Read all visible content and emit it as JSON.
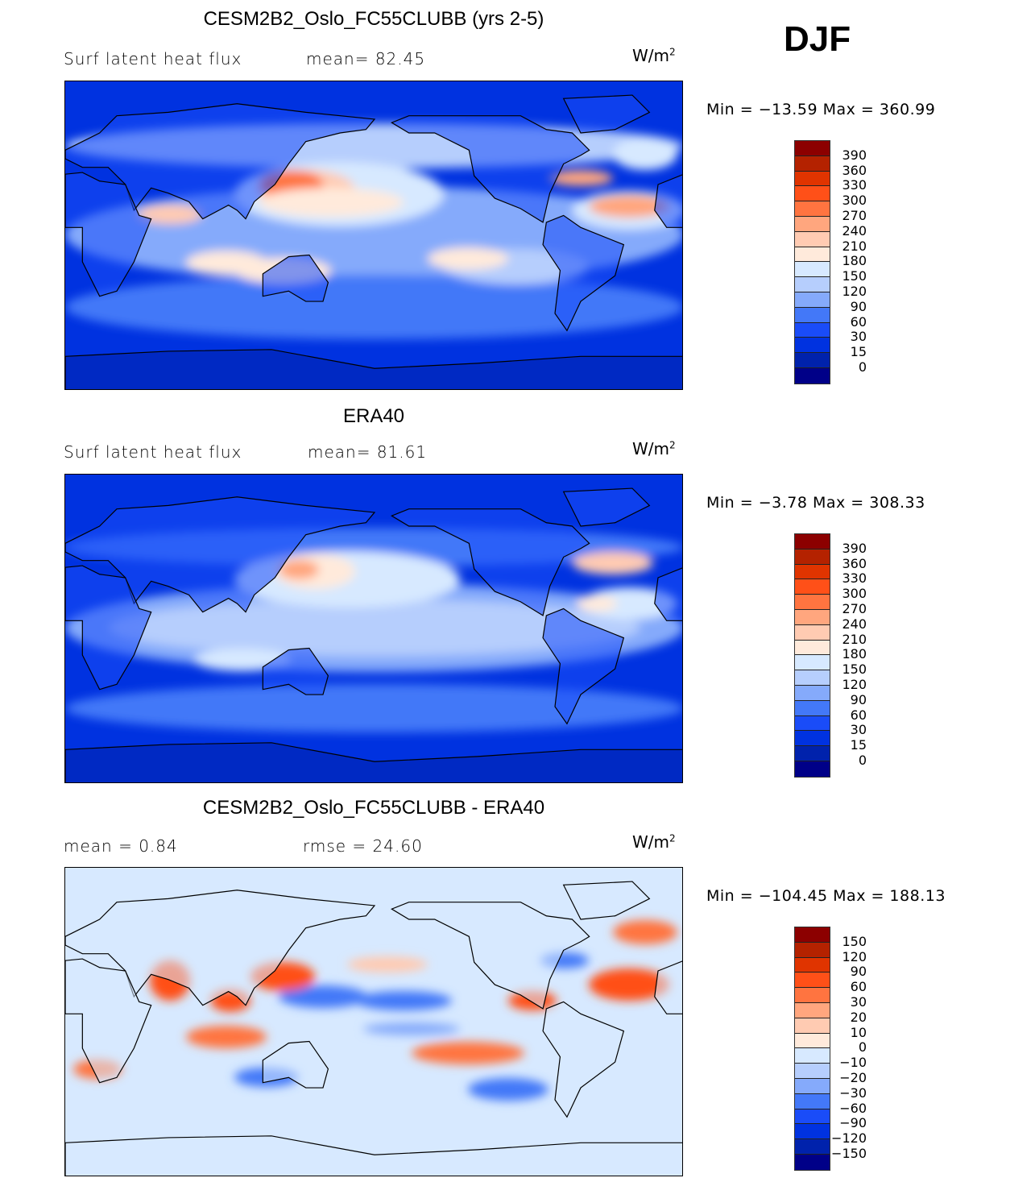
{
  "season": "DJF",
  "palette": [
    "#8c0000",
    "#b42200",
    "#e03400",
    "#ff5018",
    "#ff7440",
    "#ffa67e",
    "#ffcbb2",
    "#ffeadb",
    "#d7e9ff",
    "#b6cefd",
    "#85aafb",
    "#4378f8",
    "#1a4cf8",
    "#0032e0",
    "#0022ac",
    "#000088"
  ],
  "panels": [
    {
      "title": "CESM2B2_Oslo_FC55CLUBB (yrs 2-5)",
      "left_label": "Surf latent heat flux",
      "mid_label": "mean=  82.45",
      "units": "W/m",
      "units_exp": "2",
      "minmax": "Min  =  −13.59  Max  =  360.99",
      "colorbar_labels": [
        "390",
        "360",
        "330",
        "300",
        "270",
        "240",
        "210",
        "180",
        "150",
        "120",
        "90",
        "60",
        "30",
        "15",
        "0"
      ]
    },
    {
      "title": "ERA40",
      "left_label": "Surf latent heat flux",
      "mid_label": "mean=  81.61",
      "units": "W/m",
      "units_exp": "2",
      "minmax": "Min  =   −3.78  Max  =  308.33",
      "colorbar_labels": [
        "390",
        "360",
        "330",
        "300",
        "270",
        "240",
        "210",
        "180",
        "150",
        "120",
        "90",
        "60",
        "30",
        "15",
        "0"
      ]
    },
    {
      "title": "CESM2B2_Oslo_FC55CLUBB - ERA40",
      "left_label": "mean  =     0.84",
      "mid_label": "rmse  =    24.60",
      "units": "W/m",
      "units_exp": "2",
      "minmax": "Min  =  −104.45  Max  =  188.13",
      "colorbar_labels": [
        "150",
        "120",
        "90",
        "60",
        "30",
        "20",
        "10",
        "0",
        "−10",
        "−20",
        "−30",
        "−60",
        "−90",
        "−120",
        "−150"
      ]
    }
  ]
}
